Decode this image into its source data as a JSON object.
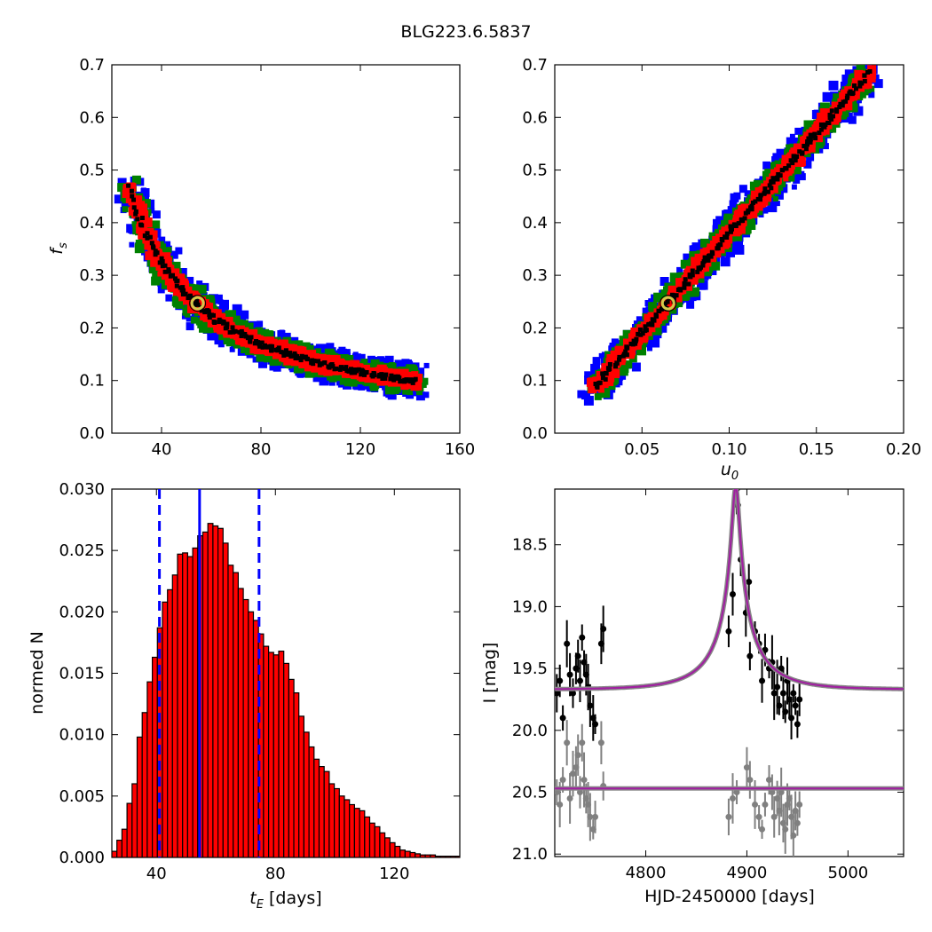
{
  "figure": {
    "title": "BLG223.6.5837"
  },
  "chart_data": [
    {
      "id": "fs_vs_tE",
      "type": "heatmap",
      "xlabel": "",
      "ylabel": "f_s",
      "xlim": [
        20,
        160
      ],
      "ylim": [
        0.0,
        0.7
      ],
      "xticks": [
        40,
        80,
        120,
        160
      ],
      "yticks": [
        0.0,
        0.1,
        0.2,
        0.3,
        0.4,
        0.5,
        0.6,
        0.7
      ],
      "colors": {
        "outer": "#0000ff",
        "middle": "#008000",
        "inner": "#ff0000",
        "core": "#000000",
        "marker": "#d4c84a"
      },
      "ridge": {
        "relation": "fs = 10.2 / tE^0.935",
        "x_range": [
          27,
          142
        ]
      },
      "best_fit": {
        "x": 54.5,
        "y": 0.247
      }
    },
    {
      "id": "fs_vs_u0",
      "type": "heatmap",
      "xlabel": "u_0",
      "ylabel": "",
      "xlim": [
        0.0,
        0.2
      ],
      "ylim": [
        0.0,
        0.7
      ],
      "xticks": [
        0.05,
        0.1,
        0.15,
        0.2
      ],
      "yticks": [
        0.0,
        0.1,
        0.2,
        0.3,
        0.4,
        0.5,
        0.6,
        0.7
      ],
      "colors": {
        "outer": "#0000ff",
        "middle": "#008000",
        "inner": "#ff0000",
        "core": "#000000",
        "marker": "#d4c84a"
      },
      "ridge": {
        "relation": "fs = 3.8 * u0",
        "x_range": [
          0.023,
          0.18
        ]
      },
      "best_fit": {
        "x": 0.065,
        "y": 0.247
      }
    },
    {
      "id": "tE_histogram",
      "type": "bar",
      "xlabel": "t_E  [days]",
      "ylabel": "normed N",
      "xlim": [
        25,
        142
      ],
      "ylim": [
        0.0,
        0.03
      ],
      "xticks": [
        40,
        80,
        120
      ],
      "yticks": [
        0.0,
        0.005,
        0.01,
        0.015,
        0.02,
        0.025,
        0.03
      ],
      "bin_start": 25,
      "bin_width": 1.7,
      "values": [
        0.0005,
        0.0014,
        0.0023,
        0.0044,
        0.006,
        0.0098,
        0.0118,
        0.0143,
        0.0163,
        0.0187,
        0.0208,
        0.0218,
        0.023,
        0.0247,
        0.0248,
        0.0245,
        0.0252,
        0.0262,
        0.0265,
        0.0272,
        0.027,
        0.0268,
        0.0256,
        0.0238,
        0.0232,
        0.0219,
        0.021,
        0.02,
        0.0193,
        0.0182,
        0.0172,
        0.0167,
        0.0165,
        0.0168,
        0.0158,
        0.0145,
        0.0134,
        0.0115,
        0.0102,
        0.009,
        0.008,
        0.0074,
        0.007,
        0.006,
        0.0056,
        0.005,
        0.0047,
        0.0043,
        0.004,
        0.0038,
        0.0033,
        0.0028,
        0.0025,
        0.002,
        0.0016,
        0.0012,
        0.0009,
        0.0006,
        0.0005,
        0.0004,
        0.0003,
        0.0002,
        0.0002,
        0.0002,
        0.0001,
        0.0001,
        0.0001,
        0.0001,
        0.0001
      ],
      "bar_color": "#ff0000",
      "median_line": 54.5,
      "interval_lines": [
        41.0,
        74.5
      ],
      "line_color": "#0000ff"
    },
    {
      "id": "light_curve",
      "type": "scatter",
      "xlabel": "HJD-2450000 [days]",
      "ylabel": "I [mag]",
      "xlim": [
        4710,
        5055
      ],
      "ylim": [
        21.02,
        18.05
      ],
      "xticks": [
        4800,
        4900,
        5000
      ],
      "yticks": [
        18.5,
        19.0,
        19.5,
        20.0,
        20.5,
        21.0
      ],
      "model": {
        "t0": 4889,
        "tE": 54.5,
        "u0": 0.065,
        "fs": 0.247,
        "I_base": 19.67,
        "offset_base": 20.47
      },
      "series": [
        {
          "color": "#000000",
          "points": [
            [
              4712,
              19.7
            ],
            [
              4715,
              19.6
            ],
            [
              4718,
              19.9
            ],
            [
              4722,
              19.3
            ],
            [
              4725,
              19.55
            ],
            [
              4728,
              19.7
            ],
            [
              4731,
              19.5
            ],
            [
              4733,
              19.4
            ],
            [
              4735,
              19.6
            ],
            [
              4737,
              19.25
            ],
            [
              4739,
              19.45
            ],
            [
              4741,
              19.55
            ],
            [
              4743,
              19.65
            ],
            [
              4745,
              19.8
            ],
            [
              4748,
              19.9
            ],
            [
              4750,
              19.95
            ],
            [
              4756,
              19.3
            ],
            [
              4758,
              19.18
            ],
            [
              4882,
              19.2
            ],
            [
              4886,
              18.9
            ],
            [
              4890,
              18.05
            ],
            [
              4891,
              18.18
            ],
            [
              4894,
              18.62
            ],
            [
              4899,
              19.05
            ],
            [
              4902,
              18.8
            ],
            [
              4903,
              19.4
            ],
            [
              4908,
              19.2
            ],
            [
              4912,
              19.3
            ],
            [
              4915,
              19.6
            ],
            [
              4918,
              19.35
            ],
            [
              4922,
              19.5
            ],
            [
              4925,
              19.45
            ],
            [
              4927,
              19.7
            ],
            [
              4930,
              19.65
            ],
            [
              4932,
              19.8
            ],
            [
              4934,
              19.5
            ],
            [
              4936,
              19.7
            ],
            [
              4938,
              19.85
            ],
            [
              4940,
              19.6
            ],
            [
              4942,
              19.75
            ],
            [
              4944,
              19.9
            ],
            [
              4946,
              19.7
            ],
            [
              4948,
              19.8
            ],
            [
              4950,
              19.95
            ],
            [
              4952,
              19.75
            ]
          ]
        },
        {
          "color": "#808080",
          "points": [
            [
              4712,
              20.5
            ],
            [
              4715,
              20.6
            ],
            [
              4718,
              20.4
            ],
            [
              4722,
              20.1
            ],
            [
              4725,
              20.55
            ],
            [
              4728,
              20.35
            ],
            [
              4731,
              20.3
            ],
            [
              4733,
              20.2
            ],
            [
              4735,
              20.5
            ],
            [
              4737,
              20.1
            ],
            [
              4739,
              20.4
            ],
            [
              4741,
              20.55
            ],
            [
              4743,
              20.6
            ],
            [
              4745,
              20.7
            ],
            [
              4748,
              20.8
            ],
            [
              4750,
              20.7
            ],
            [
              4756,
              20.1
            ],
            [
              4758,
              20.45
            ],
            [
              4882,
              20.7
            ],
            [
              4886,
              20.55
            ],
            [
              4890,
              20.5
            ],
            [
              4900,
              20.3
            ],
            [
              4903,
              20.4
            ],
            [
              4908,
              20.6
            ],
            [
              4912,
              20.7
            ],
            [
              4915,
              20.8
            ],
            [
              4918,
              20.6
            ],
            [
              4922,
              20.4
            ],
            [
              4925,
              20.5
            ],
            [
              4927,
              20.7
            ],
            [
              4930,
              20.55
            ],
            [
              4932,
              20.65
            ],
            [
              4934,
              20.5
            ],
            [
              4936,
              20.75
            ],
            [
              4938,
              20.8
            ],
            [
              4940,
              20.6
            ],
            [
              4942,
              20.55
            ],
            [
              4944,
              20.7
            ],
            [
              4946,
              20.85
            ],
            [
              4948,
              20.65
            ],
            [
              4950,
              20.75
            ],
            [
              4952,
              20.6
            ]
          ]
        }
      ],
      "model_color": "#a020a0"
    }
  ]
}
